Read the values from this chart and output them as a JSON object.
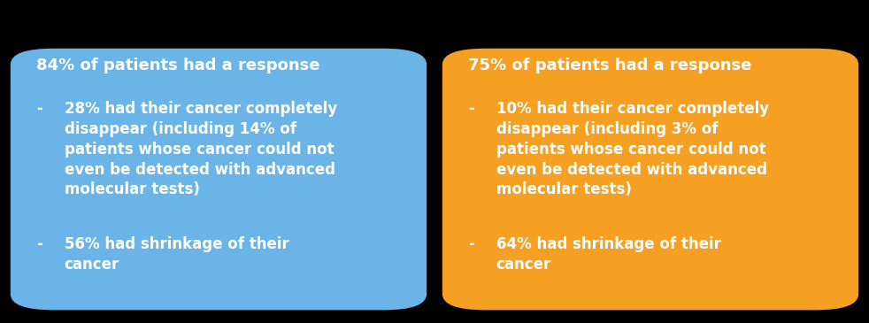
{
  "background_color": "#000000",
  "left_box_color": "#6ab4e8",
  "right_box_color": "#f5a023",
  "text_color": "#ffffff",
  "left_title": "84% of patients had a response",
  "left_bullet1_dash": "-",
  "left_bullet1_text": "28% had their cancer completely\ndisappear (including 14% of\npatients whose cancer could not\neven be detected with advanced\nmolecular tests)",
  "left_bullet2_dash": "-",
  "left_bullet2_text": "56% had shrinkage of their\ncancer",
  "right_title": "75% of patients had a response",
  "right_bullet1_dash": "-",
  "right_bullet1_text": "10% had their cancer completely\ndisappear (including 3% of\npatients whose cancer could not\neven be detected with advanced\nmolecular tests)",
  "right_bullet2_dash": "-",
  "right_bullet2_text": "64% had shrinkage of their\ncancer",
  "title_fontsize": 13.0,
  "body_fontsize": 12.0,
  "fig_width": 9.82,
  "fig_height": 3.65
}
